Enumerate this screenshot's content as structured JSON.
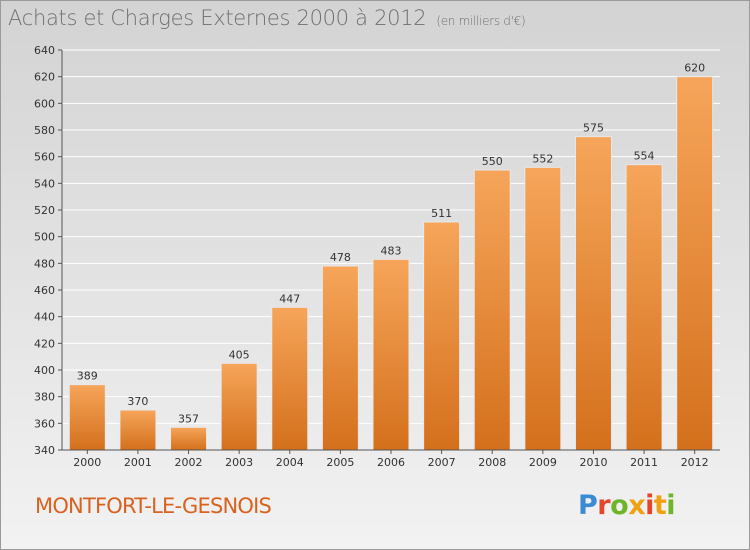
{
  "title": "Achats et Charges Externes 2000 à 2012",
  "unit": "(en milliers d'€)",
  "commune": "MONTFORT-LE-GESNOIS",
  "brand": "Proxiti",
  "colors": {
    "bar_top": "#f6a55a",
    "bar_bottom": "#d4701c",
    "title": "#6f6f6f",
    "commune": "#d9621f"
  },
  "chart_data": {
    "type": "bar",
    "title": "Achats et Charges Externes 2000 à 2012",
    "categories": [
      "2000",
      "2001",
      "2002",
      "2003",
      "2004",
      "2005",
      "2006",
      "2007",
      "2008",
      "2009",
      "2010",
      "2011",
      "2012"
    ],
    "values": [
      389,
      370,
      357,
      405,
      447,
      478,
      483,
      511,
      550,
      552,
      575,
      554,
      620
    ],
    "ylim": [
      340,
      640
    ],
    "yticks": [
      340,
      360,
      380,
      400,
      420,
      440,
      460,
      480,
      500,
      520,
      540,
      560,
      580,
      600,
      620,
      640
    ],
    "grid": true,
    "data_labels": true
  }
}
